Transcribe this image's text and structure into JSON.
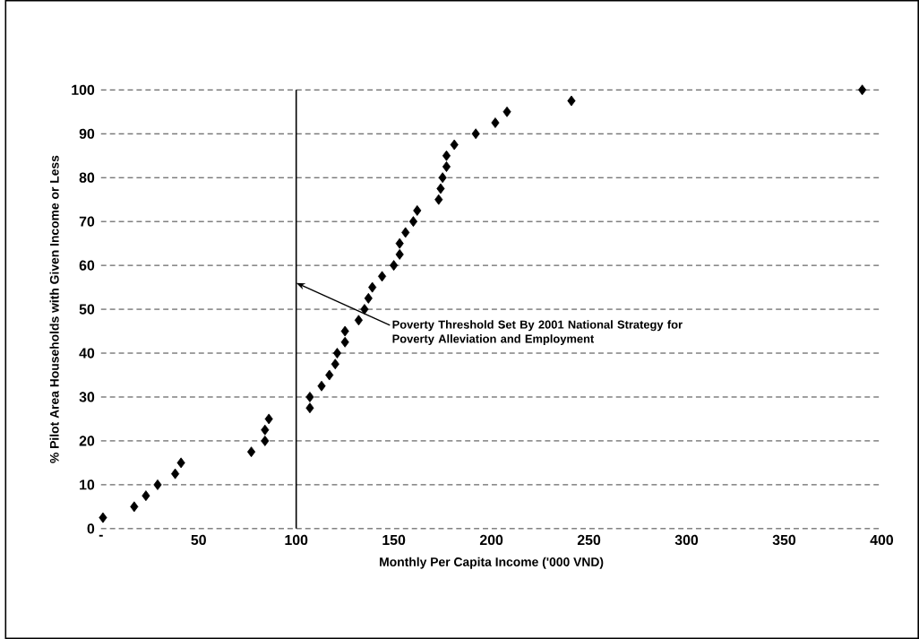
{
  "chart_data": {
    "type": "scatter",
    "xlabel": "Monthly Per Capita Income ('000 VND)",
    "ylabel": "% Pilot Area Households with Given Income or Less",
    "x": [
      1,
      17,
      23,
      29,
      38,
      41,
      77,
      84,
      84,
      86,
      107,
      107,
      113,
      117,
      120,
      121,
      125,
      125,
      132,
      135,
      137,
      139,
      144,
      150,
      153,
      153,
      156,
      160,
      162,
      173,
      174,
      175,
      177,
      177,
      181,
      192,
      202,
      208,
      241,
      390
    ],
    "values": [
      2.5,
      5,
      7.5,
      10,
      12.5,
      15,
      17.5,
      20,
      22.5,
      25,
      27.5,
      30,
      32.5,
      35,
      37.5,
      40,
      42.5,
      45,
      47.5,
      50,
      52.5,
      55,
      57.5,
      60,
      62.5,
      65,
      67.5,
      70,
      72.5,
      75,
      77.5,
      80,
      82.5,
      85,
      87.5,
      90,
      92.5,
      95,
      97.5,
      100
    ],
    "color": "#000000",
    "marker": "diamond",
    "xlim": [
      0,
      400
    ],
    "ylim": [
      0,
      100
    ],
    "xticks": [
      {
        "value": 0,
        "label": "-"
      },
      50,
      100,
      150,
      200,
      250,
      300,
      350,
      400
    ],
    "yticks": [
      0,
      10,
      20,
      30,
      40,
      50,
      60,
      70,
      80,
      90,
      100
    ],
    "grid": "y",
    "ref_lines": [
      {
        "axis": "x",
        "value": 100,
        "color": "#000000"
      }
    ],
    "annotations": [
      {
        "text": "Poverty Threshold Set By 2001 National Strategy for Poverty Alleviation and Employment",
        "x": 100,
        "y": 56
      }
    ]
  }
}
